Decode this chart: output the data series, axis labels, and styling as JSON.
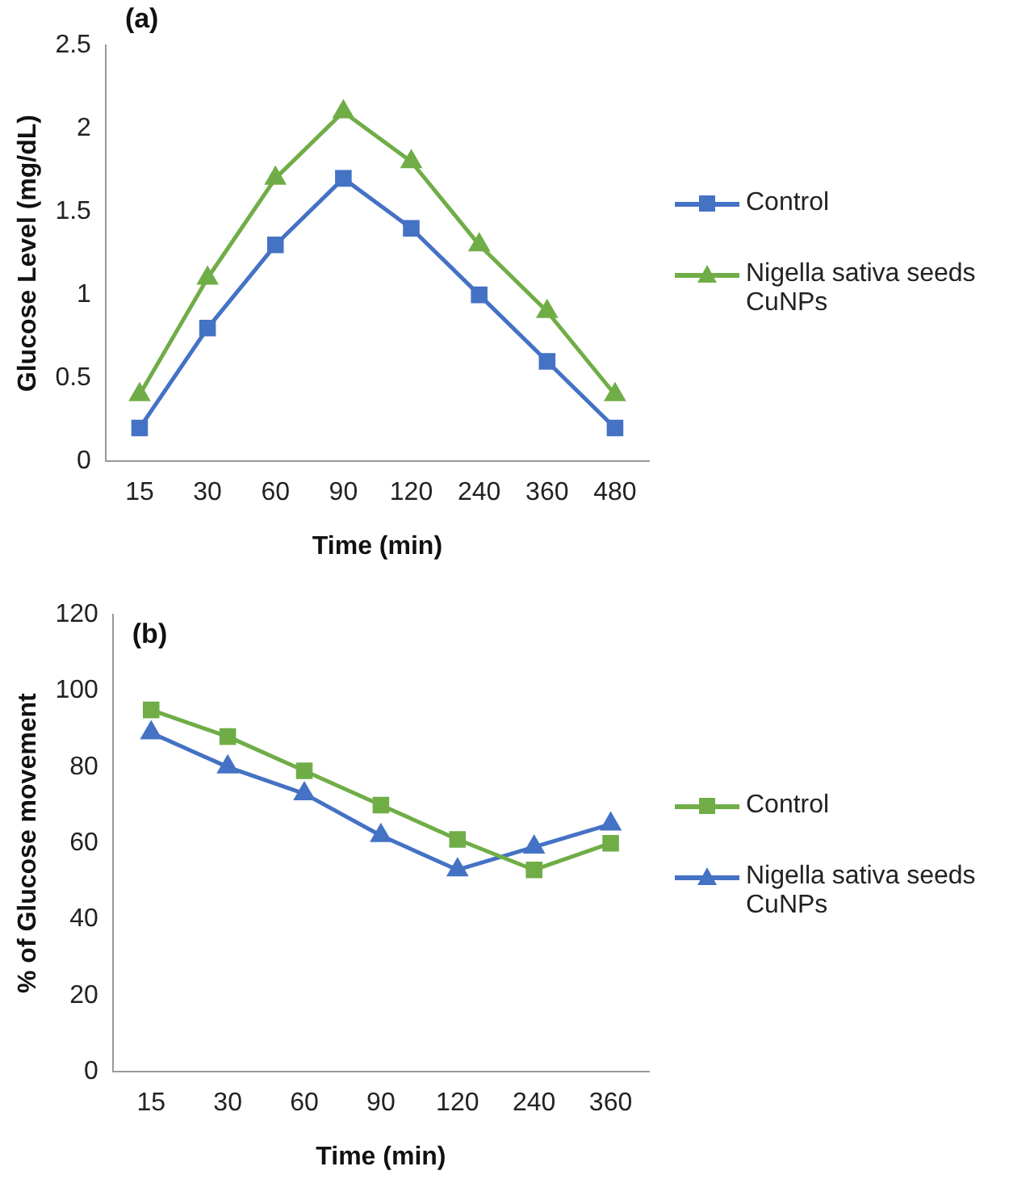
{
  "chart_data": [
    {
      "type": "line",
      "title": "(a)",
      "xlabel": "Time (min)",
      "ylabel": "Glucose Level (mg/dL)",
      "categories": [
        "15",
        "30",
        "60",
        "90",
        "120",
        "240",
        "360",
        "480"
      ],
      "ylim": [
        0,
        2.5
      ],
      "yticks": [
        0,
        0.5,
        1,
        1.5,
        2,
        2.5
      ],
      "grid": false,
      "legend": "right",
      "line_style": "solid",
      "series": [
        {
          "name": "Control",
          "color": "#4472c4",
          "marker": "square",
          "values": [
            0.2,
            0.8,
            1.3,
            1.7,
            1.4,
            1.0,
            0.6,
            0.2
          ]
        },
        {
          "name": "Nigella sativa seeds CuNPs",
          "color": "#70ad47",
          "marker": "triangle",
          "values": [
            0.4,
            1.1,
            1.7,
            2.1,
            1.8,
            1.3,
            0.9,
            0.4
          ]
        }
      ]
    },
    {
      "type": "line",
      "title": "(b)",
      "xlabel": "Time (min)",
      "ylabel": "% of Glucose movement",
      "categories": [
        "15",
        "30",
        "60",
        "90",
        "120",
        "240",
        "360"
      ],
      "ylim": [
        0,
        120
      ],
      "yticks": [
        0,
        20,
        40,
        60,
        80,
        100,
        120
      ],
      "grid": false,
      "legend": "right",
      "line_style": "solid",
      "series": [
        {
          "name": "Control",
          "color": "#70ad47",
          "marker": "square",
          "values": [
            95,
            88,
            79,
            70,
            61,
            53,
            60
          ]
        },
        {
          "name": "Nigella sativa seeds CuNPs",
          "color": "#4472c4",
          "marker": "triangle",
          "values": [
            89,
            80,
            73,
            62,
            53,
            59,
            65
          ]
        }
      ]
    }
  ]
}
